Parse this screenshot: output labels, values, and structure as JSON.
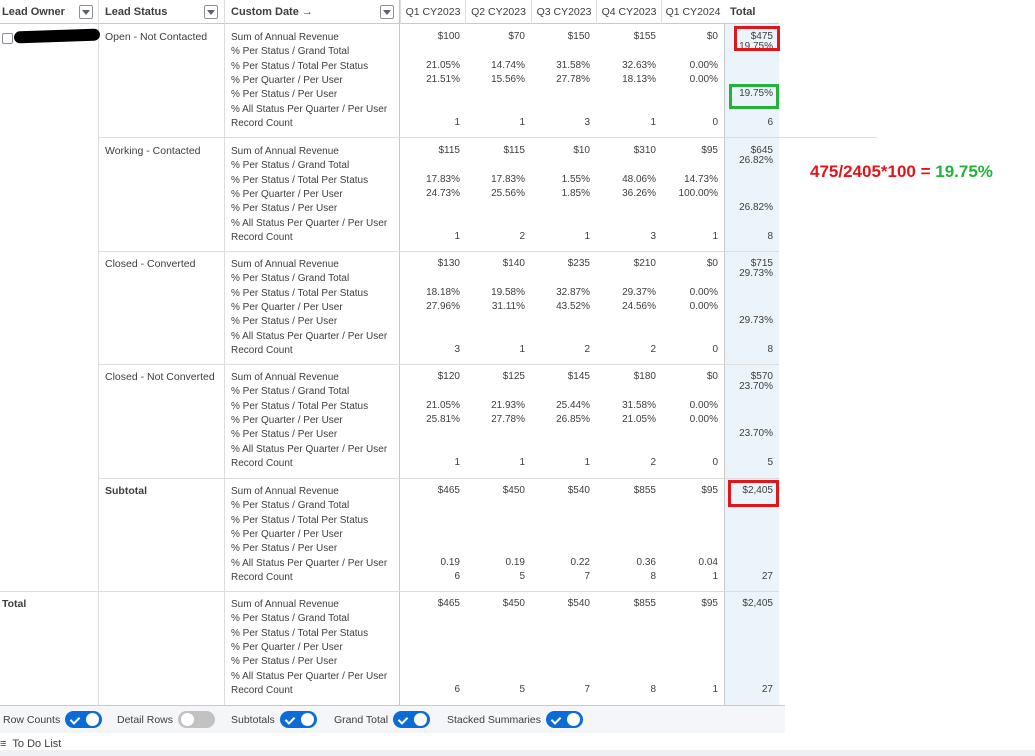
{
  "header": {
    "lead_owner": "Lead Owner",
    "lead_status": "Lead Status",
    "custom_date": "Custom Date →",
    "quarters": [
      "Q1 CY2023",
      "Q2 CY2023",
      "Q3 CY2023",
      "Q4 CY2023",
      "Q1 CY2024"
    ],
    "total": "Total"
  },
  "metrics": [
    "Sum of Annual Revenue",
    "% Per Status / Grand Total",
    "% Per Status / Total Per Status",
    "% Per Quarter / Per User",
    "% Per Status / Per User",
    "% All Status Per Quarter / Per User",
    "Record Count"
  ],
  "groups": [
    {
      "status": "Open - Not Contacted",
      "q": [
        {
          "sum": "$100",
          "pts": "21.05%",
          "pqu": "21.51%",
          "count": "1"
        },
        {
          "sum": "$70",
          "pts": "14.74%",
          "pqu": "15.56%",
          "count": "1"
        },
        {
          "sum": "$150",
          "pts": "31.58%",
          "pqu": "27.78%",
          "count": "3"
        },
        {
          "sum": "$155",
          "pts": "32.63%",
          "pqu": "18.13%",
          "count": "1"
        },
        {
          "sum": "$0",
          "pts": "0.00%",
          "pqu": "0.00%",
          "count": "0"
        }
      ],
      "total": {
        "sum": "$475",
        "pgt": "19.75%",
        "psu": "19.75%",
        "count": "6"
      }
    },
    {
      "status": "Working - Contacted",
      "q": [
        {
          "sum": "$115",
          "pts": "17.83%",
          "pqu": "24.73%",
          "count": "1"
        },
        {
          "sum": "$115",
          "pts": "17.83%",
          "pqu": "25.56%",
          "count": "2"
        },
        {
          "sum": "$10",
          "pts": "1.55%",
          "pqu": "1.85%",
          "count": "1"
        },
        {
          "sum": "$310",
          "pts": "48.06%",
          "pqu": "36.26%",
          "count": "3"
        },
        {
          "sum": "$95",
          "pts": "14.73%",
          "pqu": "100.00%",
          "count": "1"
        }
      ],
      "total": {
        "sum": "$645",
        "pgt": "26.82%",
        "psu": "26.82%",
        "count": "8"
      }
    },
    {
      "status": "Closed - Converted",
      "q": [
        {
          "sum": "$130",
          "pts": "18.18%",
          "pqu": "27.96%",
          "count": "3"
        },
        {
          "sum": "$140",
          "pts": "19.58%",
          "pqu": "31.11%",
          "count": "1"
        },
        {
          "sum": "$235",
          "pts": "32.87%",
          "pqu": "43.52%",
          "count": "2"
        },
        {
          "sum": "$210",
          "pts": "29.37%",
          "pqu": "24.56%",
          "count": "2"
        },
        {
          "sum": "$0",
          "pts": "0.00%",
          "pqu": "0.00%",
          "count": "0"
        }
      ],
      "total": {
        "sum": "$715",
        "pgt": "29.73%",
        "psu": "29.73%",
        "count": "8"
      }
    },
    {
      "status": "Closed - Not Converted",
      "q": [
        {
          "sum": "$120",
          "pts": "21.05%",
          "pqu": "25.81%",
          "count": "1"
        },
        {
          "sum": "$125",
          "pts": "21.93%",
          "pqu": "27.78%",
          "count": "1"
        },
        {
          "sum": "$145",
          "pts": "25.44%",
          "pqu": "26.85%",
          "count": "1"
        },
        {
          "sum": "$180",
          "pts": "31.58%",
          "pqu": "21.05%",
          "count": "2"
        },
        {
          "sum": "$0",
          "pts": "0.00%",
          "pqu": "0.00%",
          "count": "0"
        }
      ],
      "total": {
        "sum": "$570",
        "pgt": "23.70%",
        "psu": "23.70%",
        "count": "5"
      }
    }
  ],
  "subtotal": {
    "label": "Subtotal",
    "q": [
      {
        "sum": "$465",
        "all": "0.19",
        "count": "6"
      },
      {
        "sum": "$450",
        "all": "0.19",
        "count": "5"
      },
      {
        "sum": "$540",
        "all": "0.22",
        "count": "7"
      },
      {
        "sum": "$855",
        "all": "0.36",
        "count": "8"
      },
      {
        "sum": "$95",
        "all": "0.04",
        "count": "1"
      }
    ],
    "total": {
      "sum": "$2,405",
      "count": "27"
    }
  },
  "grand": {
    "label": "Total",
    "q": [
      {
        "sum": "$465",
        "count": "6"
      },
      {
        "sum": "$450",
        "count": "5"
      },
      {
        "sum": "$540",
        "count": "7"
      },
      {
        "sum": "$855",
        "count": "8"
      },
      {
        "sum": "$95",
        "count": "1"
      }
    ],
    "total": {
      "sum": "$2,405",
      "count": "27"
    }
  },
  "annotation": {
    "formula": "475/2405*100 = ",
    "result": "19.75%"
  },
  "footer": {
    "row_counts": "Row Counts",
    "row_counts_on": true,
    "detail_rows": "Detail Rows",
    "detail_rows_on": false,
    "subtotals": "Subtotals",
    "subtotals_on": true,
    "grand_total": "Grand Total",
    "grand_total_on": true,
    "stacked": "Stacked Summaries",
    "stacked_on": true
  },
  "todo": {
    "icon": "≡",
    "label": "To Do List"
  },
  "colors": {
    "highlight_red": "#e0161b",
    "highlight_green": "#23b33c",
    "toggle_on": "#0b6cd6",
    "total_column": "#ebf4fb"
  }
}
